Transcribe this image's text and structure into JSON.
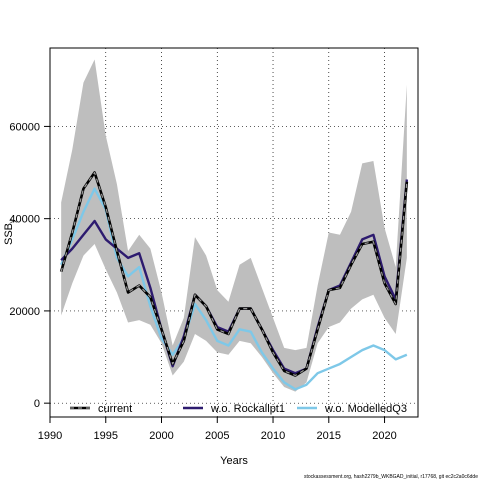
{
  "chart_data": {
    "type": "line",
    "xlabel": "Years",
    "ylabel": "SSB",
    "ylabel_subscript": "y",
    "xlim": [
      1990,
      2023
    ],
    "ylim": [
      -3000,
      77000
    ],
    "x_ticks": [
      1990,
      1995,
      2000,
      2005,
      2010,
      2015,
      2020
    ],
    "y_ticks": [
      0,
      20000,
      40000,
      60000
    ],
    "grid": true,
    "legend_placement": "bottom",
    "footer": "stockassessment.org, hash2279b_WKBGAD_initial, r17768, git ec2c2a0c6dde",
    "x": [
      1991,
      1992,
      1993,
      1994,
      1995,
      1996,
      1997,
      1998,
      1999,
      2000,
      2001,
      2002,
      2003,
      2004,
      2005,
      2006,
      2007,
      2008,
      2009,
      2010,
      2011,
      2012,
      2013,
      2014,
      2015,
      2016,
      2017,
      2018,
      2019,
      2020,
      2021,
      2022
    ],
    "band": {
      "color": "#bebebe",
      "lower": [
        19000,
        26000,
        32000,
        34500,
        29000,
        24000,
        17500,
        18000,
        17000,
        13000,
        6000,
        9000,
        15000,
        13500,
        11000,
        10500,
        13500,
        13000,
        10000,
        6500,
        3500,
        2500,
        4500,
        13000,
        16500,
        17500,
        20500,
        22500,
        23500,
        18500,
        15000,
        31500
      ],
      "upper": [
        43500,
        55000,
        69500,
        74500,
        58000,
        47500,
        33000,
        36500,
        33500,
        24000,
        12500,
        18500,
        36000,
        32000,
        24500,
        22000,
        30000,
        31500,
        25000,
        18500,
        12000,
        11500,
        12000,
        25500,
        37000,
        36500,
        41500,
        52000,
        52500,
        38000,
        29500,
        69000
      ]
    },
    "series": [
      {
        "name": "current",
        "color": "#000000",
        "style": "dashed",
        "values": [
          28500,
          37000,
          46500,
          50000,
          42500,
          33000,
          24000,
          25500,
          23000,
          16000,
          8500,
          13500,
          23500,
          21000,
          16000,
          15000,
          20500,
          20500,
          16000,
          11000,
          7000,
          6000,
          7500,
          16000,
          24500,
          25000,
          30000,
          34500,
          35000,
          26000,
          21500,
          48000
        ]
      },
      {
        "name": "w.o. Rockallpt1",
        "color": "#2d1b6f",
        "style": "solid",
        "values": [
          31000,
          33500,
          36500,
          39500,
          35500,
          33500,
          31500,
          32500,
          25000,
          16000,
          8000,
          14500,
          23500,
          21000,
          16500,
          15500,
          20500,
          20500,
          16000,
          11500,
          7500,
          6500,
          7500,
          16500,
          24500,
          25500,
          30500,
          35500,
          36500,
          27500,
          22500,
          48500
        ]
      },
      {
        "name": "w.o. ModelledQ3",
        "color": "#7ec8e8",
        "style": "solid",
        "values": [
          30000,
          35500,
          41500,
          46500,
          42000,
          31500,
          27500,
          29500,
          21000,
          14000,
          10500,
          14000,
          21500,
          18000,
          13500,
          12500,
          16000,
          15500,
          11000,
          7500,
          4500,
          3000,
          4000,
          6500,
          7500,
          8500,
          10000,
          11500,
          12500,
          11500,
          9500,
          10500
        ]
      }
    ]
  }
}
